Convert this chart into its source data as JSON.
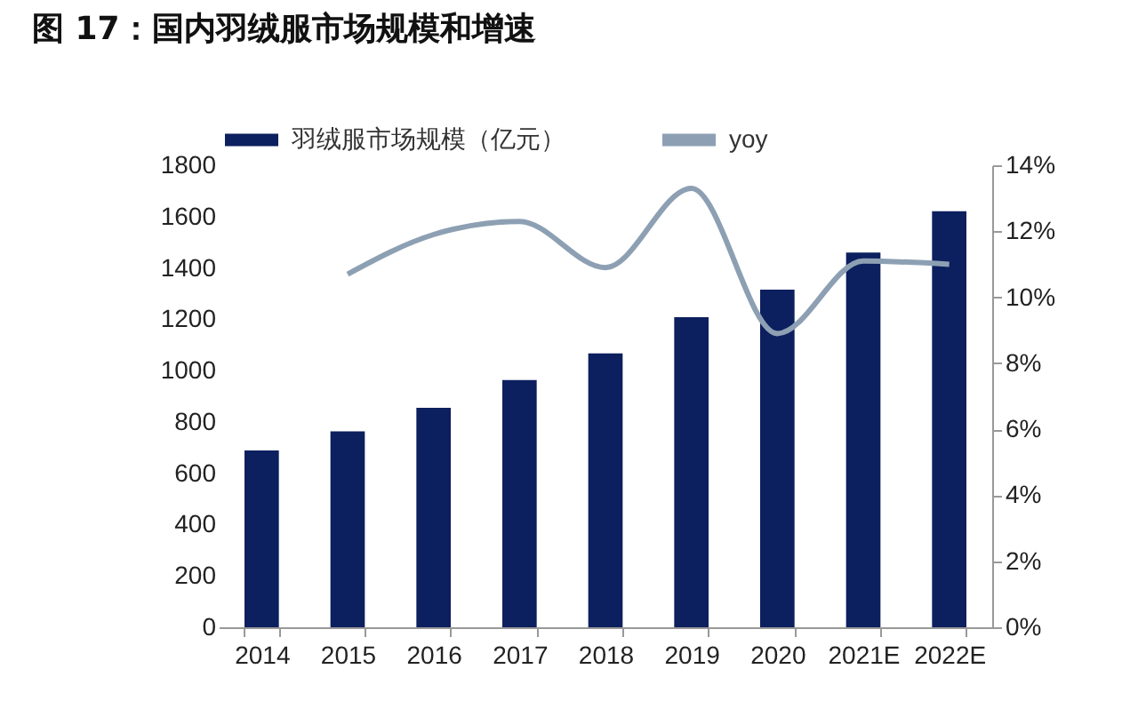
{
  "chart_data": {
    "type": "bar",
    "title": "图 17：国内羽绒服市场规模和增速",
    "categories": [
      "2014",
      "2015",
      "2016",
      "2017",
      "2018",
      "2019",
      "2020",
      "2021E",
      "2022E"
    ],
    "series": [
      {
        "name": "羽绒服市场规模（亿元）",
        "color": "#0c1f5e",
        "values": [
          689,
          763,
          855,
          963,
          1067,
          1208,
          1315,
          1460,
          1621
        ]
      },
      {
        "name": "yoy",
        "type": "line",
        "axis": "y2",
        "color": "#8da0b3",
        "values": [
          null,
          10.7,
          11.9,
          12.3,
          10.9,
          13.3,
          8.9,
          11.1,
          11.0
        ]
      }
    ],
    "ylim": [
      0,
      1800
    ],
    "yticks": [
      0,
      200,
      400,
      600,
      800,
      1000,
      1200,
      1400,
      1600,
      1800
    ],
    "y2lim": [
      0,
      14
    ],
    "y2ticks": [
      {
        "value": 0,
        "label": "0%"
      },
      {
        "value": 2,
        "label": "2%"
      },
      {
        "value": 4,
        "label": "4%"
      },
      {
        "value": 6,
        "label": "6%"
      },
      {
        "value": 8,
        "label": "8%"
      },
      {
        "value": 10,
        "label": "10%"
      },
      {
        "value": 12,
        "label": "12%"
      },
      {
        "value": 14,
        "label": "14%"
      }
    ],
    "grid": false,
    "legend": "top",
    "marker": "none",
    "line_style": "solid"
  }
}
